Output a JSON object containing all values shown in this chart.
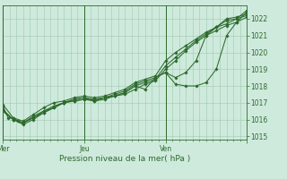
{
  "title": "",
  "xlabel": "Pression niveau de la mer( hPa )",
  "ylabel": "",
  "bg_color": "#ceeadc",
  "grid_color": "#a0c8b0",
  "line_color": "#2d6a2d",
  "marker_color": "#2d6a2d",
  "ylim": [
    1014.8,
    1022.8
  ],
  "yticks": [
    1015,
    1016,
    1017,
    1018,
    1019,
    1020,
    1021,
    1022
  ],
  "day_positions": [
    0,
    0.333,
    0.667,
    1.0
  ],
  "day_labels": [
    "Mer",
    "Jeu",
    "Ven"
  ],
  "series": [
    {
      "x": [
        0.0,
        0.021,
        0.042,
        0.063,
        0.083,
        0.125,
        0.167,
        0.208,
        0.25,
        0.292,
        0.333,
        0.375,
        0.417,
        0.458,
        0.5,
        0.542,
        0.583,
        0.625,
        0.667,
        0.708,
        0.75,
        0.792,
        0.833,
        0.875,
        0.917,
        0.958,
        1.0
      ],
      "y": [
        1016.8,
        1016.1,
        1016.1,
        1015.9,
        1015.8,
        1016.2,
        1016.5,
        1016.8,
        1017.0,
        1017.1,
        1017.2,
        1017.2,
        1017.3,
        1017.4,
        1017.5,
        1017.8,
        1018.1,
        1018.3,
        1019.0,
        1019.5,
        1020.1,
        1020.6,
        1021.0,
        1021.3,
        1021.6,
        1021.8,
        1022.1
      ]
    },
    {
      "x": [
        0.0,
        0.042,
        0.083,
        0.125,
        0.167,
        0.25,
        0.292,
        0.333,
        0.375,
        0.417,
        0.458,
        0.5,
        0.542,
        0.583,
        0.625,
        0.667,
        0.708,
        0.75,
        0.792,
        0.833,
        0.875,
        0.917,
        0.958,
        1.0
      ],
      "y": [
        1016.6,
        1016.0,
        1015.8,
        1016.1,
        1016.4,
        1017.0,
        1017.1,
        1017.2,
        1017.1,
        1017.3,
        1017.4,
        1017.6,
        1018.0,
        1018.2,
        1018.4,
        1019.2,
        1019.7,
        1020.2,
        1020.7,
        1021.1,
        1021.5,
        1021.9,
        1022.0,
        1022.2
      ]
    },
    {
      "x": [
        0.0,
        0.042,
        0.083,
        0.125,
        0.167,
        0.208,
        0.25,
        0.292,
        0.333,
        0.375,
        0.417,
        0.458,
        0.5,
        0.542,
        0.583,
        0.625,
        0.667,
        0.708,
        0.75,
        0.792,
        0.833,
        0.875,
        0.917,
        0.958,
        1.0
      ],
      "y": [
        1016.5,
        1016.0,
        1015.8,
        1016.1,
        1016.5,
        1016.7,
        1017.0,
        1017.2,
        1017.3,
        1017.2,
        1017.3,
        1017.5,
        1017.7,
        1018.1,
        1018.3,
        1018.5,
        1018.8,
        1018.1,
        1018.0,
        1018.0,
        1018.2,
        1019.0,
        1021.0,
        1021.8,
        1022.4
      ]
    },
    {
      "x": [
        0.0,
        0.042,
        0.083,
        0.125,
        0.167,
        0.208,
        0.25,
        0.292,
        0.333,
        0.375,
        0.417,
        0.458,
        0.5,
        0.542,
        0.583,
        0.625,
        0.667,
        0.708,
        0.75,
        0.792,
        0.833,
        0.875,
        0.917,
        0.958,
        1.0
      ],
      "y": [
        1016.5,
        1016.0,
        1015.7,
        1016.0,
        1016.4,
        1016.7,
        1017.0,
        1017.2,
        1017.3,
        1017.1,
        1017.2,
        1017.4,
        1017.6,
        1018.0,
        1017.8,
        1018.5,
        1018.8,
        1018.5,
        1018.8,
        1019.5,
        1021.0,
        1021.5,
        1022.0,
        1022.1,
        1022.3
      ]
    },
    {
      "x": [
        0.0,
        0.042,
        0.083,
        0.125,
        0.167,
        0.208,
        0.25,
        0.292,
        0.333,
        0.375,
        0.417,
        0.458,
        0.5,
        0.542,
        0.583,
        0.625,
        0.667,
        0.708,
        0.75,
        0.792,
        0.833,
        0.875,
        0.917,
        0.958,
        1.0
      ],
      "y": [
        1016.9,
        1016.1,
        1015.9,
        1016.3,
        1016.7,
        1017.0,
        1017.1,
        1017.3,
        1017.4,
        1017.3,
        1017.4,
        1017.6,
        1017.8,
        1018.2,
        1018.4,
        1018.6,
        1019.5,
        1020.0,
        1020.4,
        1020.8,
        1021.2,
        1021.5,
        1021.7,
        1022.0,
        1022.5
      ]
    }
  ]
}
